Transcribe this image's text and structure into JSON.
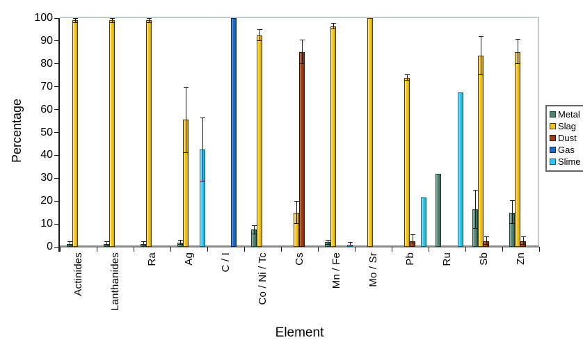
{
  "chart_data": {
    "type": "bar",
    "title": "",
    "xlabel": "Element",
    "ylabel": "Percentage",
    "ylim": [
      0,
      100
    ],
    "yticks": [
      0,
      10,
      20,
      30,
      40,
      50,
      60,
      70,
      80,
      90,
      100
    ],
    "grid": false,
    "legend_position": "right",
    "categories": [
      "Actinides",
      "Lanthanides",
      "Ra",
      "Ag",
      "C / I",
      "Co / Ni / Tc",
      "Cs",
      "Mn / Fe",
      "Mo / Sr",
      "Pb",
      "Ru",
      "Sb",
      "Zn"
    ],
    "series": [
      {
        "name": "Metal",
        "color": "#4F8170",
        "values": [
          1.2,
          1.2,
          1.3,
          1.8,
          0,
          7.5,
          0,
          2,
          0,
          0,
          32,
          16.5,
          15
        ],
        "error_bars": [
          [
            0.5,
            2.5
          ],
          [
            0.5,
            2.5
          ],
          [
            0.5,
            2.5
          ],
          [
            1,
            3
          ],
          null,
          [
            5.5,
            9.5
          ],
          null,
          [
            1,
            3
          ],
          null,
          null,
          null,
          [
            8,
            25
          ],
          [
            10,
            20.5
          ]
        ]
      },
      {
        "name": "Slag",
        "color": "#F3C117",
        "values": [
          99,
          99,
          99,
          55.5,
          0,
          92.5,
          15,
          96.5,
          100,
          74,
          0,
          83.5,
          85
        ],
        "error_bars": [
          [
            98,
            100
          ],
          [
            98,
            100
          ],
          [
            98,
            100
          ],
          [
            41,
            70
          ],
          null,
          [
            90,
            95
          ],
          [
            10,
            20
          ],
          [
            95,
            98
          ],
          null,
          [
            72.5,
            75.5
          ],
          null,
          [
            75,
            92
          ],
          [
            80,
            91
          ]
        ]
      },
      {
        "name": "Dust",
        "color": "#9A3C0F",
        "values": [
          0,
          0,
          0,
          0,
          0,
          0,
          85,
          0,
          0,
          2.5,
          0,
          2.5,
          2.5
        ],
        "error_bars": [
          null,
          null,
          null,
          null,
          null,
          null,
          [
            80,
            90.5
          ],
          null,
          null,
          [
            1.5,
            5.5
          ],
          null,
          [
            1,
            4.5
          ],
          [
            1,
            4.5
          ]
        ]
      },
      {
        "name": "Gas",
        "color": "#1A6AC5",
        "values": [
          0,
          0,
          0,
          0,
          100,
          0,
          0,
          0,
          0,
          0,
          0,
          0,
          0
        ],
        "error_bars": [
          null,
          null,
          null,
          null,
          null,
          null,
          null,
          null,
          null,
          null,
          null,
          null,
          null
        ]
      },
      {
        "name": "Slime",
        "color": "#31C7EC",
        "values": [
          0,
          0,
          0,
          42.5,
          0,
          0,
          0,
          1,
          0,
          21.5,
          67.5,
          0,
          0
        ],
        "error_bars": [
          null,
          null,
          null,
          [
            28.5,
            56.5
          ],
          null,
          null,
          null,
          [
            0.5,
            2
          ],
          null,
          null,
          null,
          null,
          null
        ]
      }
    ],
    "axis_colors": {
      "axis_line": "#1A1A1A",
      "baseline": "#8C8C8C",
      "plot_border": "#C3CDC7",
      "error_bar": "#1A1A1A"
    },
    "bar_shades": {
      "Metal": {
        "light": "#86AC9C",
        "dark": "#3C6554",
        "border": "#213D31"
      },
      "Slag": {
        "light": "#FFE070",
        "dark": "#C79C0A",
        "border": "#4A3A06"
      },
      "Dust": {
        "light": "#C26A36",
        "dark": "#77280A",
        "border": "#351204"
      },
      "Gas": {
        "light": "#5B96DD",
        "dark": "#114E97",
        "border": "#092C5E"
      },
      "Slime": {
        "light": "#8FE3F6",
        "dark": "#18A3C6",
        "border": "#0B5E75"
      }
    }
  }
}
